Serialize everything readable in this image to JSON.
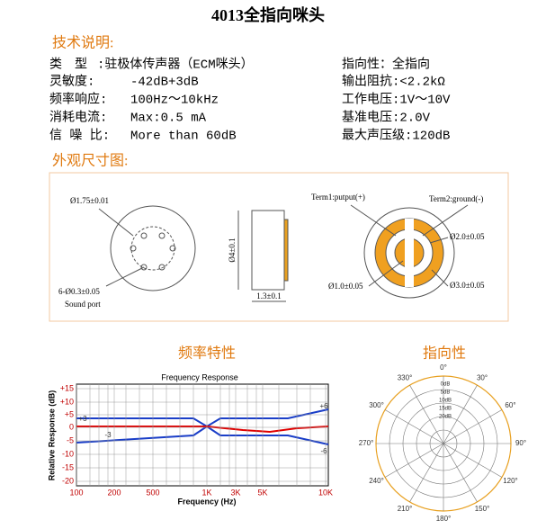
{
  "title": "4013全指向咪头",
  "spec_heading": "技术说明:",
  "specs_left": [
    [
      "类　型",
      ":驻极体传声器（ECM咪头）"
    ],
    [
      "灵敏度:",
      "-42dB+3dB"
    ],
    [
      "频率响应:",
      "100Hz～10kHz"
    ],
    [
      "消耗电流:",
      "Max:0.5 mA"
    ],
    [
      "信 噪 比:",
      "More than 60dB"
    ]
  ],
  "specs_right": [
    "指向性：全指向",
    "输出阻抗:<2.2kΩ",
    "工作电压:1V～10V",
    "基准电压:2.0V",
    "最大声压级:120dB"
  ],
  "outline_heading": "外观尺寸图:",
  "dimensions": {
    "front_dia": "Ø1.75±0.01",
    "port_holes": "6-Ø0.3±0.05",
    "port_label": "Sound port",
    "height": "Ø4±0.1",
    "thickness": "1.3±0.1",
    "term1": "Term1:putput(+)",
    "term2": "Term2:ground(-)",
    "outer_pad": "Ø2.0±0.05",
    "inner_pad": "Ø1.0±0.05",
    "back_dia": "Ø3.0±0.05"
  },
  "freq_heading": "频率特性",
  "direct_heading": "指向性",
  "freq_chart": {
    "title": "Frequency Response",
    "y_label": "Relative Response (dB)",
    "x_label": "Frequency (Hz)",
    "yticks": [
      "+15",
      "+10",
      "+5",
      "0",
      "-5",
      "-10",
      "-15",
      "-20"
    ],
    "xticks": [
      "100",
      "200",
      "500",
      "1K",
      "3K",
      "5K",
      "10K"
    ],
    "annotations": [
      "+3",
      "-3",
      "+6",
      "-6"
    ]
  },
  "polar_chart": {
    "angles": [
      "0°",
      "30°",
      "60°",
      "90°",
      "120°",
      "150°",
      "180°",
      "210°",
      "240°",
      "270°",
      "300°",
      "330°"
    ],
    "rings": [
      "0dB",
      "5dB",
      "10dB",
      "15dB",
      "20dB"
    ]
  }
}
